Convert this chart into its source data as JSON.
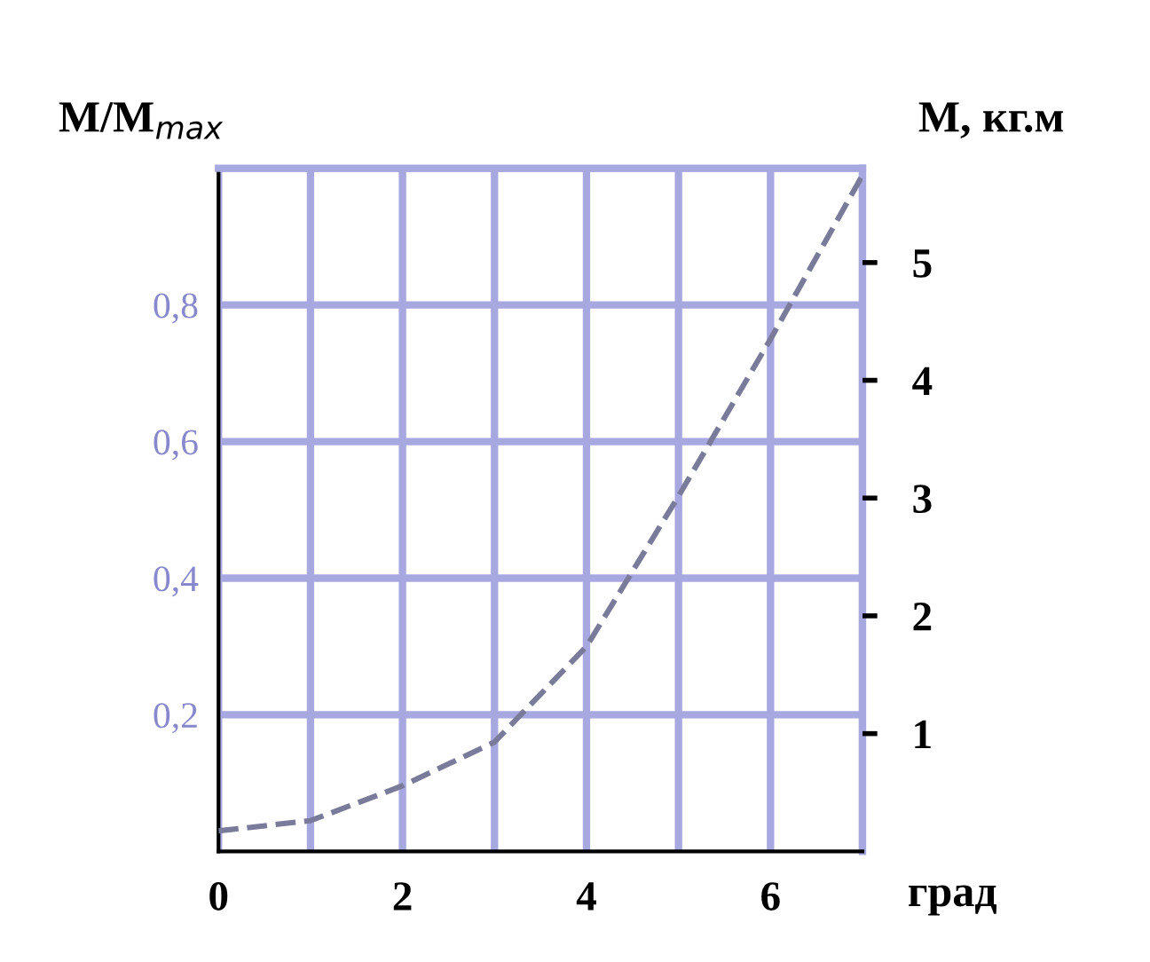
{
  "chart_data": {
    "type": "line",
    "ylabel": "M/M$_{max}$",
    "y2label": "M, кг.м",
    "xlabel": "град",
    "x": [
      0,
      1,
      2,
      3,
      4,
      5,
      6,
      7
    ],
    "series": [
      {
        "color": "#7a7a9a",
        "values": [
          0.03,
          0.045,
          0.096,
          0.16,
          0.3,
          0.52,
          0.75,
          0.99
        ]
      }
    ],
    "xlim": [
      0,
      7
    ],
    "xticks": [
      0,
      {
        "value": 1,
        "label": null
      },
      2,
      {
        "value": 3,
        "label": null
      },
      4,
      {
        "value": 5,
        "label": null
      },
      6,
      {
        "value": 7,
        "label": null
      }
    ],
    "ylim": [
      0,
      1.0
    ],
    "yticks": [
      {
        "value": 0.2,
        "label": "0,2"
      },
      {
        "value": 0.4,
        "label": "0,4"
      },
      {
        "value": 0.6,
        "label": "0,6"
      },
      {
        "value": 0.8,
        "label": "0,8"
      },
      {
        "value": 1.0,
        "label": null
      }
    ],
    "y2lim": [
      0,
      5.8
    ],
    "y2ticks": [
      1,
      2,
      3,
      4,
      5
    ],
    "grid": true,
    "line_style": "dashed",
    "marker": "none"
  }
}
